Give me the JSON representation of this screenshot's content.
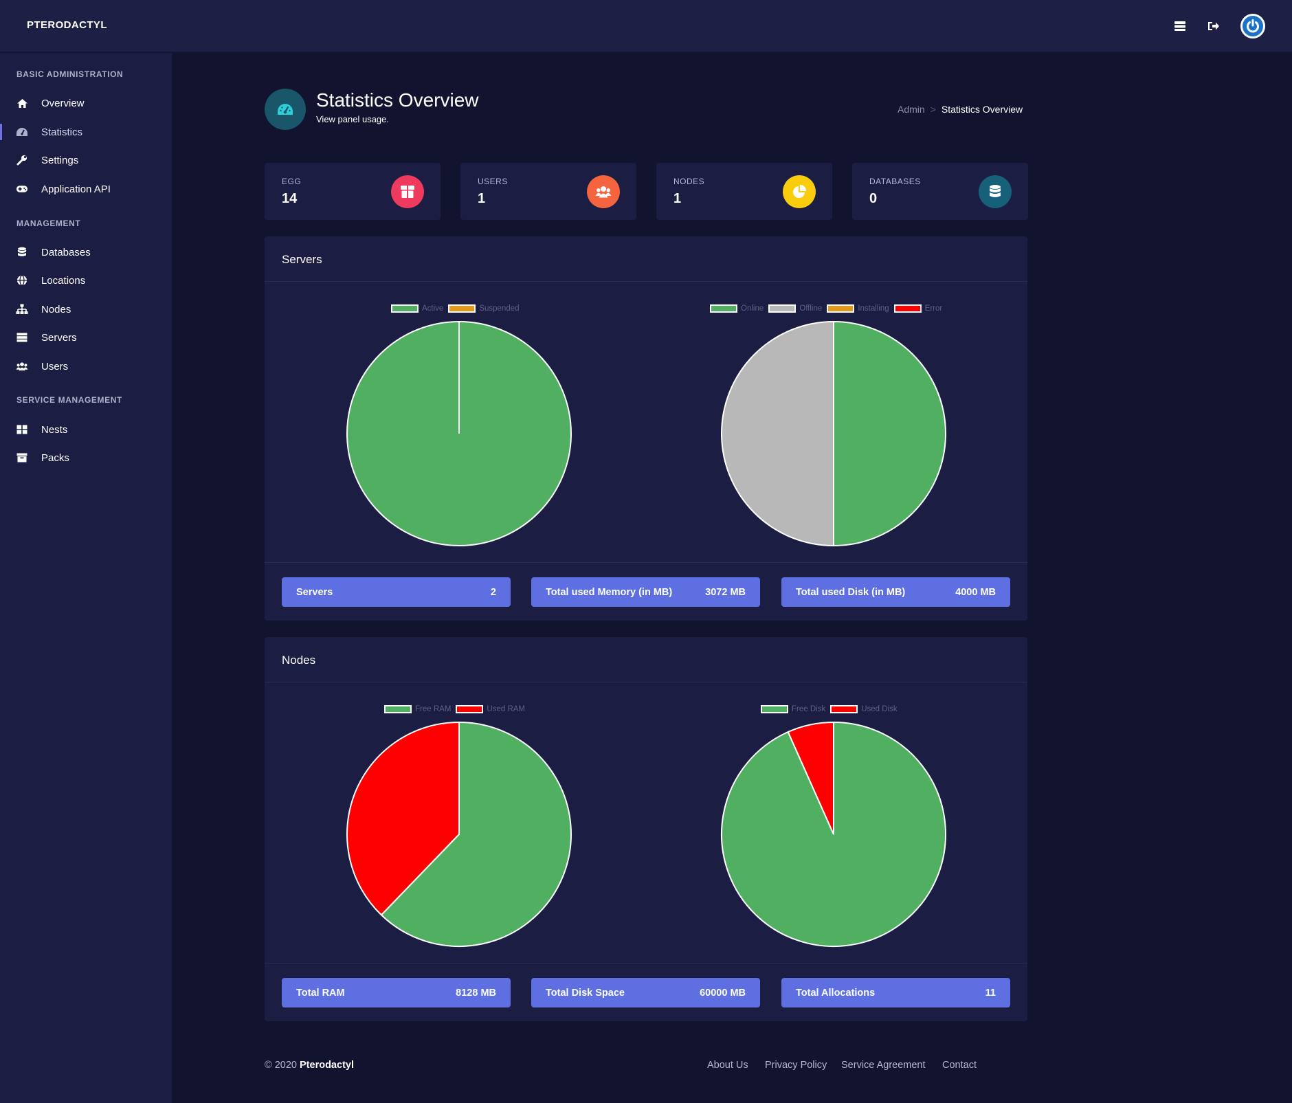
{
  "app": {
    "brand": "PTERODACTYL"
  },
  "topbar": {
    "icons": [
      "servers-list-icon",
      "logout-icon",
      "power-icon"
    ]
  },
  "sidebar": {
    "sections": [
      {
        "heading": "BASIC ADMINISTRATION",
        "items": [
          {
            "label": "Overview",
            "icon": "home-icon"
          },
          {
            "label": "Statistics",
            "icon": "dashboard-icon",
            "active": true
          },
          {
            "label": "Settings",
            "icon": "wrench-icon"
          },
          {
            "label": "Application API",
            "icon": "gamepad-icon"
          }
        ]
      },
      {
        "heading": "MANAGEMENT",
        "items": [
          {
            "label": "Databases",
            "icon": "database-icon"
          },
          {
            "label": "Locations",
            "icon": "globe-icon"
          },
          {
            "label": "Nodes",
            "icon": "sitemap-icon"
          },
          {
            "label": "Servers",
            "icon": "server-icon"
          },
          {
            "label": "Users",
            "icon": "users-icon"
          }
        ]
      },
      {
        "heading": "SERVICE MANAGEMENT",
        "items": [
          {
            "label": "Nests",
            "icon": "grid-icon"
          },
          {
            "label": "Packs",
            "icon": "archive-icon"
          }
        ]
      }
    ]
  },
  "header": {
    "title": "Statistics Overview",
    "subtitle": "View panel usage.",
    "breadcrumb": {
      "admin": "Admin",
      "separator": ">",
      "current": "Statistics Overview"
    }
  },
  "stats": [
    {
      "label": "EGG",
      "value": "14",
      "color": "#ee3a5d",
      "icon": "box-icon"
    },
    {
      "label": "USERS",
      "value": "1",
      "color": "#f3643f",
      "icon": "users-icon"
    },
    {
      "label": "NODES",
      "value": "1",
      "color": "#f9cd0d",
      "icon": "pie-icon"
    },
    {
      "label": "DATABASES",
      "value": "0",
      "color": "#17607a",
      "icon": "database-icon"
    }
  ],
  "servers_panel": {
    "title": "Servers",
    "summary": [
      {
        "label": "Servers",
        "value": "2"
      },
      {
        "label": "Total used Memory (in MB)",
        "value": "3072 MB"
      },
      {
        "label": "Total used Disk (in MB)",
        "value": "4000 MB"
      }
    ]
  },
  "nodes_panel": {
    "title": "Nodes",
    "summary": [
      {
        "label": "Total RAM",
        "value": "8128 MB"
      },
      {
        "label": "Total Disk Space",
        "value": "60000 MB"
      },
      {
        "label": "Total Allocations",
        "value": "11"
      }
    ]
  },
  "chart_data": [
    {
      "type": "pie",
      "legend_position": "top",
      "categories": [
        "Active",
        "Suspended"
      ],
      "values": [
        2,
        0
      ],
      "colors": [
        "#51af62",
        "#e39a1c"
      ]
    },
    {
      "type": "pie",
      "legend_position": "top",
      "categories": [
        "Online",
        "Offline",
        "Installing",
        "Error"
      ],
      "values": [
        1,
        1,
        0,
        0
      ],
      "colors": [
        "#51af62",
        "#b8b8b8",
        "#e39a1c",
        "#ff0000"
      ]
    },
    {
      "type": "pie",
      "legend_position": "top",
      "categories": [
        "Free RAM",
        "Used RAM"
      ],
      "values": [
        5056,
        3072
      ],
      "colors": [
        "#51af62",
        "#ff0000"
      ]
    },
    {
      "type": "pie",
      "legend_position": "top",
      "categories": [
        "Free Disk",
        "Used Disk"
      ],
      "values": [
        56000,
        4000
      ],
      "colors": [
        "#51af62",
        "#ff0000"
      ]
    }
  ],
  "footer": {
    "copyright_prefix": "© 2020",
    "copyright_name": "Pterodactyl",
    "links": [
      "About Us",
      "Privacy Policy",
      "Service Agreement",
      "Contact"
    ]
  }
}
